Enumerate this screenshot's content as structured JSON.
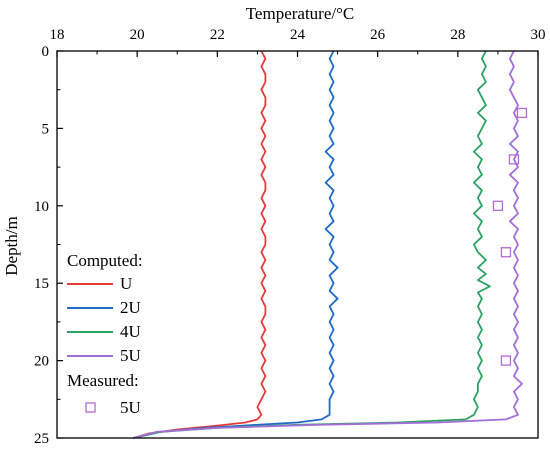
{
  "chart_data": {
    "type": "line",
    "xlabel": "Temperature/°C",
    "ylabel": "Depth/m",
    "xlim": [
      18,
      30
    ],
    "ylim": [
      0,
      25
    ],
    "y_inverted": true,
    "x_axis_position": "top",
    "xticks": [
      18,
      20,
      22,
      24,
      26,
      28,
      30
    ],
    "yticks": [
      0,
      5,
      10,
      15,
      20,
      25
    ],
    "grid": false,
    "legend": {
      "placement": "bottom-left",
      "computed_header": "Computed:",
      "measured_header": "Measured:"
    },
    "series": [
      {
        "name": "U",
        "group": "computed",
        "color": "#e8393b",
        "points": [
          [
            23.1,
            0
          ],
          [
            23.2,
            0.5
          ],
          [
            23.1,
            1
          ],
          [
            23.2,
            1.5
          ],
          [
            23.2,
            2
          ],
          [
            23.1,
            2.5
          ],
          [
            23.2,
            3
          ],
          [
            23.2,
            3.5
          ],
          [
            23.1,
            4
          ],
          [
            23.2,
            4.5
          ],
          [
            23.1,
            5
          ],
          [
            23.2,
            5.5
          ],
          [
            23.1,
            6
          ],
          [
            23.2,
            6.5
          ],
          [
            23.1,
            7
          ],
          [
            23.2,
            7.5
          ],
          [
            23.1,
            8
          ],
          [
            23.2,
            8.5
          ],
          [
            23.2,
            9
          ],
          [
            23.1,
            9.5
          ],
          [
            23.2,
            10
          ],
          [
            23.1,
            10.5
          ],
          [
            23.2,
            11
          ],
          [
            23.1,
            11.5
          ],
          [
            23.2,
            12
          ],
          [
            23.2,
            12.5
          ],
          [
            23.1,
            13
          ],
          [
            23.2,
            13.5
          ],
          [
            23.1,
            14
          ],
          [
            23.2,
            14.5
          ],
          [
            23.1,
            15
          ],
          [
            23.2,
            15.5
          ],
          [
            23.1,
            16
          ],
          [
            23.2,
            16.5
          ],
          [
            23.2,
            17
          ],
          [
            23.1,
            17.5
          ],
          [
            23.2,
            18
          ],
          [
            23.1,
            18.5
          ],
          [
            23.2,
            19
          ],
          [
            23.1,
            19.5
          ],
          [
            23.2,
            20
          ],
          [
            23.1,
            20.5
          ],
          [
            23.2,
            21
          ],
          [
            23.1,
            21.5
          ],
          [
            23.2,
            22
          ],
          [
            23.1,
            22.5
          ],
          [
            23.0,
            23
          ],
          [
            23.1,
            23.5
          ],
          [
            23.0,
            23.8
          ],
          [
            22.7,
            24.0
          ],
          [
            22.0,
            24.2
          ],
          [
            21.0,
            24.45
          ],
          [
            20.3,
            24.7
          ],
          [
            19.9,
            25
          ]
        ]
      },
      {
        "name": "2U",
        "group": "computed",
        "color": "#1f6bc4",
        "points": [
          [
            24.9,
            0
          ],
          [
            24.8,
            0.5
          ],
          [
            24.9,
            1
          ],
          [
            24.8,
            1.5
          ],
          [
            24.9,
            2
          ],
          [
            24.8,
            2.5
          ],
          [
            24.9,
            3
          ],
          [
            24.8,
            3.5
          ],
          [
            24.9,
            4
          ],
          [
            24.8,
            4.5
          ],
          [
            24.9,
            5
          ],
          [
            24.8,
            5.5
          ],
          [
            24.9,
            6
          ],
          [
            24.7,
            6.5
          ],
          [
            24.9,
            7
          ],
          [
            24.8,
            7.5
          ],
          [
            24.9,
            8
          ],
          [
            24.7,
            8.5
          ],
          [
            24.9,
            9
          ],
          [
            24.8,
            9.5
          ],
          [
            24.9,
            10
          ],
          [
            24.8,
            10.5
          ],
          [
            24.9,
            11
          ],
          [
            24.7,
            11.5
          ],
          [
            24.9,
            12
          ],
          [
            24.8,
            12.5
          ],
          [
            24.9,
            13
          ],
          [
            24.8,
            13.5
          ],
          [
            25.0,
            14
          ],
          [
            24.8,
            14.5
          ],
          [
            24.9,
            15
          ],
          [
            24.8,
            15.5
          ],
          [
            25.0,
            16
          ],
          [
            24.8,
            16.5
          ],
          [
            24.9,
            17
          ],
          [
            24.8,
            17.5
          ],
          [
            24.9,
            18
          ],
          [
            24.8,
            18.5
          ],
          [
            24.9,
            19
          ],
          [
            24.8,
            19.5
          ],
          [
            24.9,
            20
          ],
          [
            24.8,
            20.5
          ],
          [
            24.9,
            21
          ],
          [
            24.8,
            21.5
          ],
          [
            24.9,
            22
          ],
          [
            24.8,
            22.5
          ],
          [
            24.8,
            23
          ],
          [
            24.8,
            23.5
          ],
          [
            24.6,
            23.8
          ],
          [
            24.0,
            24.0
          ],
          [
            23.0,
            24.15
          ],
          [
            21.7,
            24.35
          ],
          [
            20.6,
            24.6
          ],
          [
            19.9,
            25
          ]
        ]
      },
      {
        "name": "4U",
        "group": "computed",
        "color": "#2ea165",
        "points": [
          [
            28.7,
            0
          ],
          [
            28.6,
            0.5
          ],
          [
            28.7,
            1
          ],
          [
            28.6,
            1.5
          ],
          [
            28.7,
            2
          ],
          [
            28.5,
            2.5
          ],
          [
            28.6,
            3
          ],
          [
            28.7,
            3.5
          ],
          [
            28.5,
            4
          ],
          [
            28.7,
            4.5
          ],
          [
            28.6,
            5
          ],
          [
            28.5,
            5.5
          ],
          [
            28.6,
            6
          ],
          [
            28.4,
            6.5
          ],
          [
            28.6,
            7
          ],
          [
            28.5,
            7.5
          ],
          [
            28.6,
            8
          ],
          [
            28.4,
            8.5
          ],
          [
            28.6,
            9
          ],
          [
            28.5,
            9.5
          ],
          [
            28.6,
            10
          ],
          [
            28.4,
            10.5
          ],
          [
            28.6,
            11
          ],
          [
            28.5,
            11.5
          ],
          [
            28.6,
            12
          ],
          [
            28.4,
            12.5
          ],
          [
            28.5,
            13
          ],
          [
            28.7,
            13.5
          ],
          [
            28.5,
            14
          ],
          [
            28.7,
            14.4
          ],
          [
            28.5,
            14.8
          ],
          [
            28.8,
            15.2
          ],
          [
            28.5,
            15.6
          ],
          [
            28.6,
            16
          ],
          [
            28.5,
            16.5
          ],
          [
            28.6,
            17
          ],
          [
            28.5,
            17.5
          ],
          [
            28.6,
            18
          ],
          [
            28.5,
            18.5
          ],
          [
            28.6,
            19
          ],
          [
            28.5,
            19.5
          ],
          [
            28.6,
            20
          ],
          [
            28.5,
            20.5
          ],
          [
            28.6,
            21
          ],
          [
            28.5,
            21.5
          ],
          [
            28.5,
            22
          ],
          [
            28.4,
            22.5
          ],
          [
            28.5,
            23
          ],
          [
            28.4,
            23.5
          ],
          [
            28.2,
            23.8
          ],
          [
            26.5,
            24.0
          ],
          [
            24.0,
            24.15
          ],
          [
            22.0,
            24.35
          ],
          [
            20.6,
            24.6
          ],
          [
            19.9,
            25
          ]
        ]
      },
      {
        "name": "5U",
        "group": "computed",
        "color": "#a36ed8",
        "points": [
          [
            29.4,
            0
          ],
          [
            29.3,
            0.5
          ],
          [
            29.4,
            1
          ],
          [
            29.3,
            1.5
          ],
          [
            29.4,
            2
          ],
          [
            29.3,
            2.5
          ],
          [
            29.4,
            3
          ],
          [
            29.5,
            3.5
          ],
          [
            29.4,
            4
          ],
          [
            29.5,
            4.5
          ],
          [
            29.4,
            5
          ],
          [
            29.5,
            5.5
          ],
          [
            29.3,
            6
          ],
          [
            29.5,
            6.5
          ],
          [
            29.4,
            7
          ],
          [
            29.5,
            7.5
          ],
          [
            29.3,
            8
          ],
          [
            29.5,
            8.5
          ],
          [
            29.4,
            9
          ],
          [
            29.5,
            9.5
          ],
          [
            29.4,
            10
          ],
          [
            29.5,
            10.5
          ],
          [
            29.3,
            11
          ],
          [
            29.5,
            11.5
          ],
          [
            29.4,
            12
          ],
          [
            29.5,
            12.5
          ],
          [
            29.4,
            13
          ],
          [
            29.5,
            13.5
          ],
          [
            29.4,
            14
          ],
          [
            29.5,
            14.5
          ],
          [
            29.4,
            15
          ],
          [
            29.5,
            15.5
          ],
          [
            29.4,
            16
          ],
          [
            29.5,
            16.5
          ],
          [
            29.4,
            17
          ],
          [
            29.5,
            17.5
          ],
          [
            29.4,
            18
          ],
          [
            29.5,
            18.5
          ],
          [
            29.4,
            19
          ],
          [
            29.5,
            19.5
          ],
          [
            29.4,
            20
          ],
          [
            29.5,
            20.5
          ],
          [
            29.4,
            21
          ],
          [
            29.6,
            21.5
          ],
          [
            29.4,
            22
          ],
          [
            29.5,
            22.5
          ],
          [
            29.4,
            23
          ],
          [
            29.5,
            23.5
          ],
          [
            29.2,
            23.8
          ],
          [
            27.5,
            24.0
          ],
          [
            24.5,
            24.15
          ],
          [
            22.0,
            24.35
          ],
          [
            20.5,
            24.6
          ],
          [
            19.9,
            25
          ]
        ]
      },
      {
        "name": "5U",
        "group": "measured",
        "color": "#b56ad3",
        "marker": "square",
        "points": [
          [
            29.6,
            4
          ],
          [
            29.4,
            7
          ],
          [
            29.0,
            10
          ],
          [
            29.2,
            13
          ],
          [
            29.2,
            20
          ]
        ]
      }
    ]
  }
}
